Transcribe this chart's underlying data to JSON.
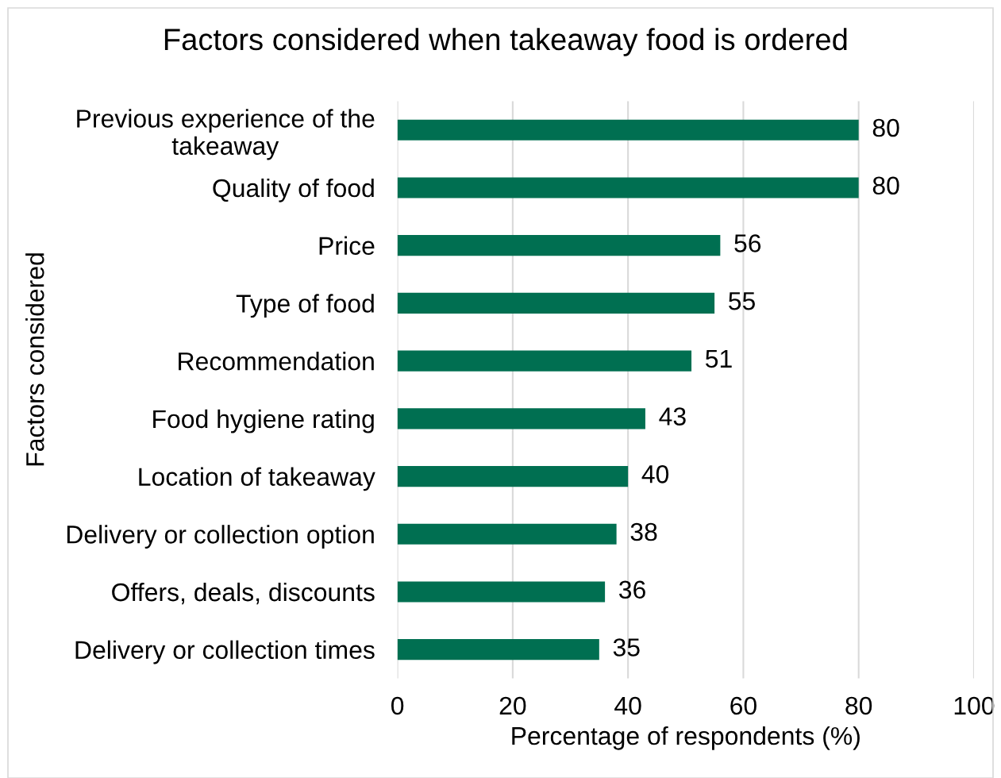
{
  "chart_data": {
    "type": "bar",
    "orientation": "horizontal",
    "title": "Factors considered when takeaway food is ordered",
    "xlabel": "Percentage of respondents (%)",
    "ylabel": "Factors considered",
    "categories": [
      "Previous experience of the\ntakeaway",
      "Quality of food",
      "Price",
      "Type of food",
      "Recommendation",
      "Food hygiene rating",
      "Location of takeaway",
      "Delivery or collection option",
      "Offers, deals, discounts",
      "Delivery or collection times"
    ],
    "values": [
      80,
      80,
      56,
      55,
      51,
      43,
      40,
      38,
      36,
      35
    ],
    "color": "#006f51",
    "data_labels": true,
    "xlim": [
      0,
      100
    ],
    "xticks": [
      0,
      20,
      40,
      60,
      80,
      100
    ],
    "grid": "x",
    "legend": false
  }
}
